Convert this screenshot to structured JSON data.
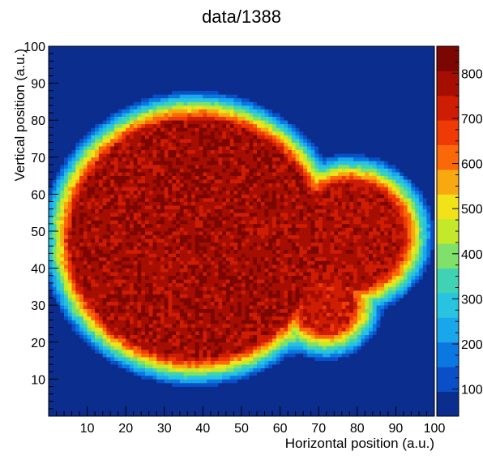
{
  "chart_data": {
    "type": "heatmap",
    "title": "data/1388",
    "xlabel": "Horizontal position (a.u.)",
    "ylabel": "Vertical position (a.u.)",
    "xlim": [
      0,
      100
    ],
    "ylim": [
      0,
      100
    ],
    "x_ticks": [
      "10",
      "20",
      "30",
      "40",
      "50",
      "60",
      "70",
      "80",
      "90",
      "100"
    ],
    "y_ticks": [
      "10",
      "20",
      "30",
      "40",
      "50",
      "60",
      "70",
      "80",
      "90",
      "100"
    ],
    "colorbar_ticks": [
      "100",
      "200",
      "300",
      "400",
      "500",
      "600",
      "700",
      "800"
    ],
    "z_range": [
      40,
      860
    ],
    "bins_per_axis": 100,
    "colormap": "rainbow",
    "palette": [
      "#0b2d8e",
      "#0a4fc7",
      "#0a78e0",
      "#1aa6ea",
      "#27c3e0",
      "#3fd3b4",
      "#7fe06a",
      "#c4e92b",
      "#f2e219",
      "#f7a90f",
      "#fa6808",
      "#f03a05",
      "#cf1d03",
      "#a60e02",
      "#7c0601"
    ],
    "blobs": [
      {
        "x": 38,
        "y": 48,
        "r": 37,
        "level": 810
      },
      {
        "x": 78,
        "y": 49,
        "r": 19,
        "level": 790
      },
      {
        "x": 72,
        "y": 30,
        "r": 12,
        "level": 760
      },
      {
        "x": 48,
        "y": 55,
        "r": 7,
        "level": 690
      },
      {
        "x": 80,
        "y": 52,
        "r": 6,
        "level": 700
      },
      {
        "x": 12,
        "y": 56,
        "r": 5,
        "level": 650
      },
      {
        "x": 63,
        "y": 22,
        "r": 3,
        "level": 640
      }
    ]
  }
}
